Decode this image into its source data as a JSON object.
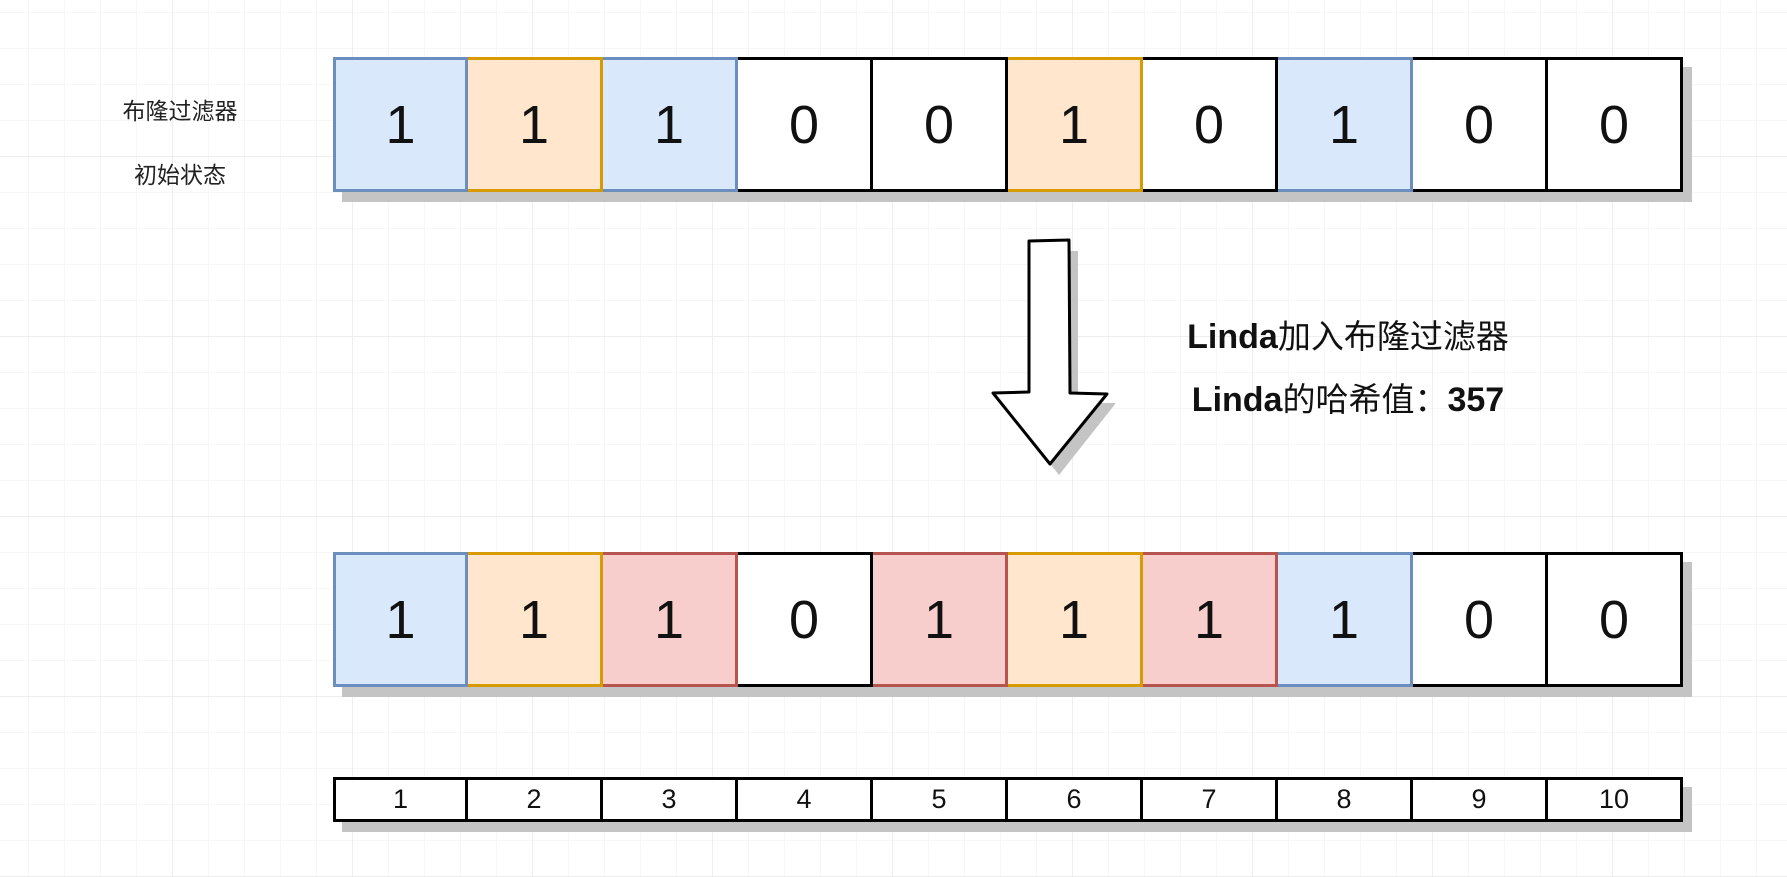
{
  "title": {
    "line1": "布隆过滤器",
    "line2": "初始状态"
  },
  "initial_bits": [
    {
      "value": "1",
      "color": "blue"
    },
    {
      "value": "1",
      "color": "orange"
    },
    {
      "value": "1",
      "color": "blue"
    },
    {
      "value": "0",
      "color": "white"
    },
    {
      "value": "0",
      "color": "white"
    },
    {
      "value": "1",
      "color": "orange"
    },
    {
      "value": "0",
      "color": "white"
    },
    {
      "value": "1",
      "color": "blue"
    },
    {
      "value": "0",
      "color": "white"
    },
    {
      "value": "0",
      "color": "white"
    }
  ],
  "after_bits": [
    {
      "value": "1",
      "color": "blue"
    },
    {
      "value": "1",
      "color": "orange"
    },
    {
      "value": "1",
      "color": "red"
    },
    {
      "value": "0",
      "color": "white"
    },
    {
      "value": "1",
      "color": "red"
    },
    {
      "value": "1",
      "color": "orange"
    },
    {
      "value": "1",
      "color": "red"
    },
    {
      "value": "1",
      "color": "blue"
    },
    {
      "value": "0",
      "color": "white"
    },
    {
      "value": "0",
      "color": "white"
    }
  ],
  "indices": [
    "1",
    "2",
    "3",
    "4",
    "5",
    "6",
    "7",
    "8",
    "9",
    "10"
  ],
  "annotation": {
    "line1_name": "Linda",
    "line1_text": "加入布隆过滤器",
    "line2_name": "Linda",
    "line2_text": "的哈希值：",
    "line2_value": "357"
  },
  "colors": {
    "blue_fill": "#dae8fc",
    "blue_stroke": "#6c8ebf",
    "orange_fill": "#ffe6cc",
    "orange_stroke": "#d79b00",
    "red_fill": "#f8cecc",
    "red_stroke": "#b85450"
  }
}
